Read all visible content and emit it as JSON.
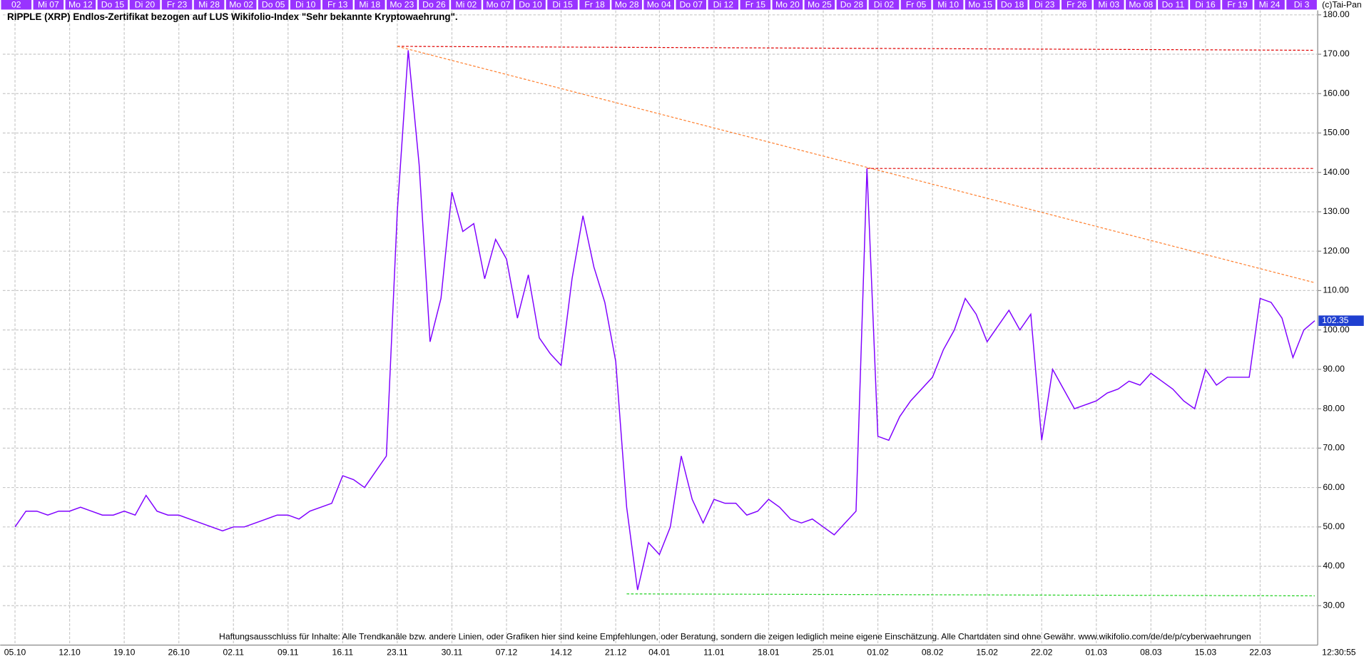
{
  "chart_data": {
    "type": "line",
    "title": "RIPPLE (XRP) Endlos-Zertifikat bezogen auf LUS Wikifolio-Index \"Sehr bekannte Kryptowaehrung\".",
    "footer": "Haftungsausschluss für Inhalte: Alle Trendkanäle bzw. andere Linien, oder Grafiken hier sind keine Empfehlungen, oder Beratung, sondern die zeigen lediglich meine eigene Einschätzung. Alle Chartdaten sind ohne Gewähr.  www.wikifolio.com/de/de/p/cyberwaehrungen",
    "copyright": "(c)Tai-Pan",
    "time": "12:30:55",
    "top_labels": [
      "02",
      "Mi 07",
      "Mo 12",
      "Do 15",
      "Di 20",
      "Fr 23",
      "Mi 28",
      "Mo 02",
      "Do 05",
      "Di 10",
      "Fr 13",
      "Mi 18",
      "Mo 23",
      "Do 26",
      "Mi 02",
      "Mo 07",
      "Do 10",
      "Di 15",
      "Fr 18",
      "Mo 28",
      "Mo 04",
      "Do 07",
      "Di 12",
      "Fr 15",
      "Mo 20",
      "Mo 25",
      "Do 28",
      "Di 02",
      "Fr 05",
      "Mi 10",
      "Mo 15",
      "Do 18",
      "Di 23",
      "Fr 26",
      "Mi 03",
      "Mo 08",
      "Do 11",
      "Di 16",
      "Fr 19",
      "Mi 24",
      "Di 3"
    ],
    "categories": [
      "05.10",
      null,
      null,
      null,
      null,
      "12.10",
      null,
      null,
      null,
      null,
      "19.10",
      null,
      null,
      null,
      null,
      "26.10",
      null,
      null,
      null,
      null,
      "02.11",
      null,
      null,
      null,
      null,
      "09.11",
      null,
      null,
      null,
      null,
      "16.11",
      null,
      null,
      null,
      null,
      "23.11",
      null,
      null,
      null,
      null,
      "30.11",
      null,
      null,
      null,
      null,
      "07.12",
      null,
      null,
      null,
      null,
      "14.12",
      null,
      null,
      null,
      null,
      "21.12",
      null,
      null,
      null,
      "04.01",
      null,
      null,
      null,
      null,
      "11.01",
      null,
      null,
      null,
      null,
      "18.01",
      null,
      null,
      null,
      null,
      "25.01",
      null,
      null,
      null,
      null,
      "01.02",
      null,
      null,
      null,
      null,
      "08.02",
      null,
      null,
      null,
      null,
      "15.02",
      null,
      null,
      null,
      null,
      "22.02",
      null,
      null,
      null,
      null,
      "01.03",
      null,
      null,
      null,
      null,
      "08.03",
      null,
      null,
      null,
      null,
      "15.03",
      null,
      null,
      null,
      null,
      "22.03",
      null,
      null,
      null,
      null,
      null
    ],
    "series": [
      {
        "name": "RIPPLE (XRP)",
        "color": "#7f00ff",
        "values": [
          50,
          54,
          54,
          53,
          54,
          54,
          55,
          54,
          53,
          53,
          54,
          53,
          58,
          54,
          53,
          53,
          52,
          51,
          50,
          49,
          50,
          50,
          51,
          52,
          53,
          53,
          52,
          54,
          55,
          56,
          63,
          62,
          60,
          64,
          68,
          130,
          171,
          142,
          97,
          108,
          135,
          125,
          127,
          113,
          123,
          118,
          103,
          114,
          98,
          94,
          91,
          113,
          129,
          116,
          107,
          92,
          55,
          34,
          46,
          43,
          50,
          68,
          57,
          51,
          57,
          56,
          56,
          53,
          54,
          57,
          55,
          52,
          51,
          52,
          50,
          48,
          51,
          54,
          141,
          73,
          72,
          78,
          82,
          85,
          88,
          95,
          100,
          108,
          104,
          97,
          101,
          105,
          100,
          104,
          72,
          90,
          85,
          80,
          81,
          82,
          84,
          85,
          87,
          86,
          89,
          87,
          85,
          82,
          80,
          90,
          86,
          88,
          88,
          88,
          108,
          107,
          103,
          93,
          100,
          102.35
        ]
      }
    ],
    "trend_lines": [
      {
        "color": "#e00000",
        "x_index": [
          35,
          119
        ],
        "values": [
          172,
          171
        ]
      },
      {
        "color": "#ff8030",
        "x_index": [
          35,
          119
        ],
        "values": [
          172,
          112
        ]
      },
      {
        "color": "#e00000",
        "x_index": [
          78,
          119
        ],
        "values": [
          141,
          141
        ]
      },
      {
        "color": "#20d020",
        "x_index": [
          56,
          119
        ],
        "values": [
          33,
          32.5
        ]
      }
    ],
    "ylim": [
      20,
      182
    ],
    "yticks": [
      {
        "value": 30,
        "label": "30.00"
      },
      {
        "value": 40,
        "label": "40.00"
      },
      {
        "value": 50,
        "label": "50.00"
      },
      {
        "value": 60,
        "label": "60.00"
      },
      {
        "value": 70,
        "label": "70.00"
      },
      {
        "value": 80,
        "label": "80.00"
      },
      {
        "value": 90,
        "label": "90.00"
      },
      {
        "value": 100,
        "label": "100.00"
      },
      {
        "value": 110,
        "label": "110.00"
      },
      {
        "value": 120,
        "label": "120.00"
      },
      {
        "value": 130,
        "label": "130.00"
      },
      {
        "value": 140,
        "label": "140.00"
      },
      {
        "value": 150,
        "label": "150.00"
      },
      {
        "value": 160,
        "label": "160.00"
      },
      {
        "value": 170,
        "label": "170.00"
      },
      {
        "value": 180,
        "label": "180.00"
      }
    ],
    "grid": true
  }
}
